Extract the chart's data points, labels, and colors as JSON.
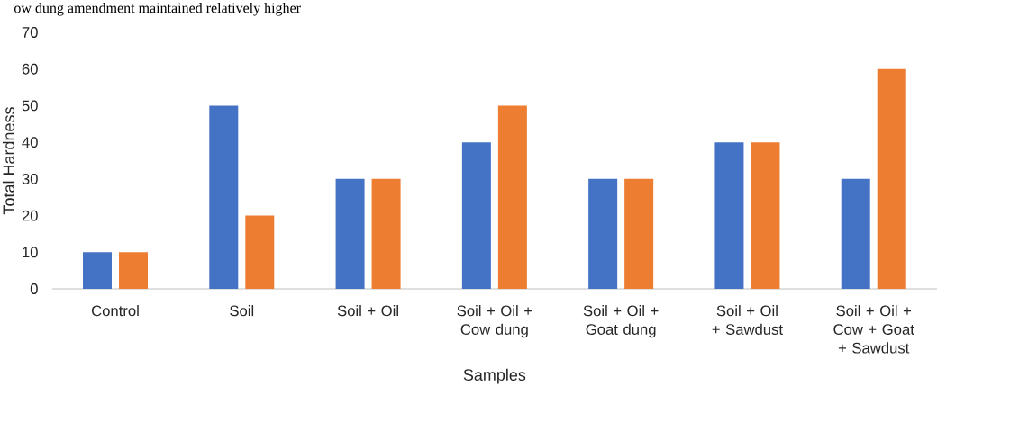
{
  "chart_data": {
    "type": "bar",
    "xlabel": "Samples",
    "ylabel": "Total Hardness",
    "annotations": [
      "ow dung amendment maintained relatively higher"
    ],
    "categories": [
      "Control",
      "Soil",
      "Soil + Oil",
      "Soil + Oil + Cow dung",
      "Soil + Oil + Goat dung",
      "Soil + Oil + Sawdust",
      "Soil + Oil + Cow + Goat + Sawdust"
    ],
    "series": [
      {
        "color": "#4472c4",
        "values": [
          10,
          50,
          30,
          40,
          30,
          40,
          30
        ]
      },
      {
        "color": "#ed7d31",
        "values": [
          10,
          20,
          30,
          50,
          30,
          40,
          60
        ]
      }
    ],
    "ylim": [
      0,
      70
    ],
    "yticks": [
      0,
      10,
      20,
      30,
      40,
      50,
      60,
      70
    ],
    "grid": false
  }
}
